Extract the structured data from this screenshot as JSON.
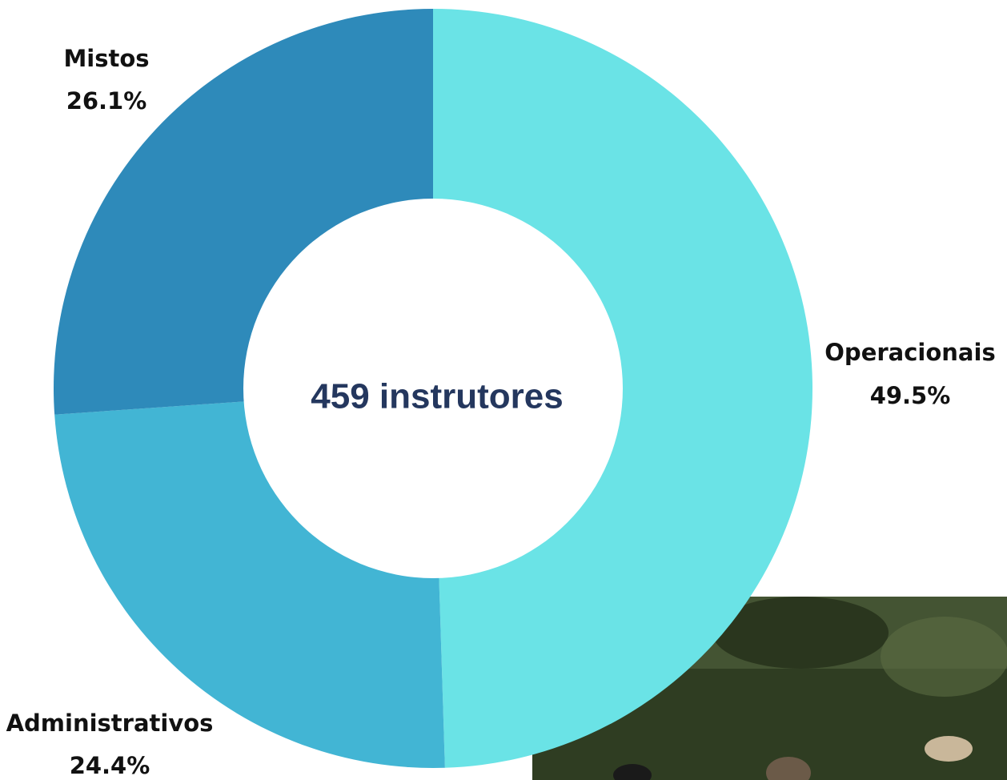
{
  "chart_data": {
    "type": "donut",
    "center_label": "459 instrutores",
    "categories": [
      "Operacionais",
      "Administrativos",
      "Mistos"
    ],
    "values": [
      49.5,
      24.4,
      26.1
    ],
    "value_labels": [
      "49.5%",
      "24.4%",
      "26.1%"
    ],
    "colors": [
      "#6ae3e6",
      "#42b5d4",
      "#2e8aba"
    ]
  }
}
